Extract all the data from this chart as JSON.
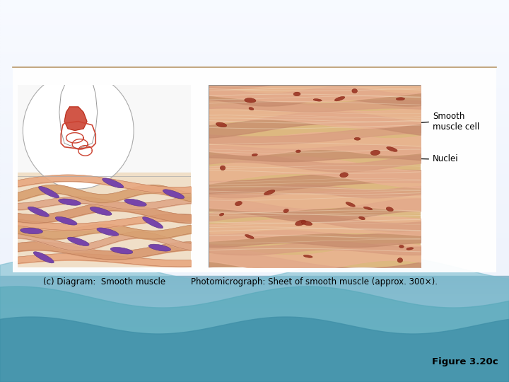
{
  "bg_top_color": "#eef2f8",
  "divider_line_color": "#b8976a",
  "label_smooth_muscle_cell": "Smooth\nmuscle cell",
  "label_nuclei": "Nuclei",
  "caption_left": "(c) Diagram:  Smooth muscle",
  "caption_right": "Photomicrograph: Sheet of smooth muscle (approx. 300×).",
  "figure_label": "Figure 3.20c",
  "caption_fontsize": 8.5,
  "figure_label_fontsize": 9.5,
  "label_fontsize": 8.5,
  "wave_color_light": "#8fc8d8",
  "wave_color_mid": "#6ab0c8",
  "wave_color_dark": "#4a90a8",
  "panel_bg": "#f8f8f8",
  "fiber_bg_diagram": "#f0d0b0",
  "fiber_color_diagram": "#e09070",
  "fiber_edge_diagram": "#c07050",
  "nucleus_color_diagram": "#7744aa",
  "nucleus_edge_diagram": "#553388",
  "fiber_bg_photo": "#ddb890",
  "fiber_color_photo1": "#cc8868",
  "fiber_color_photo2": "#e0a080",
  "photo_streak_color": "#f0d8b8",
  "nucleus_color_photo": "#aa3322"
}
